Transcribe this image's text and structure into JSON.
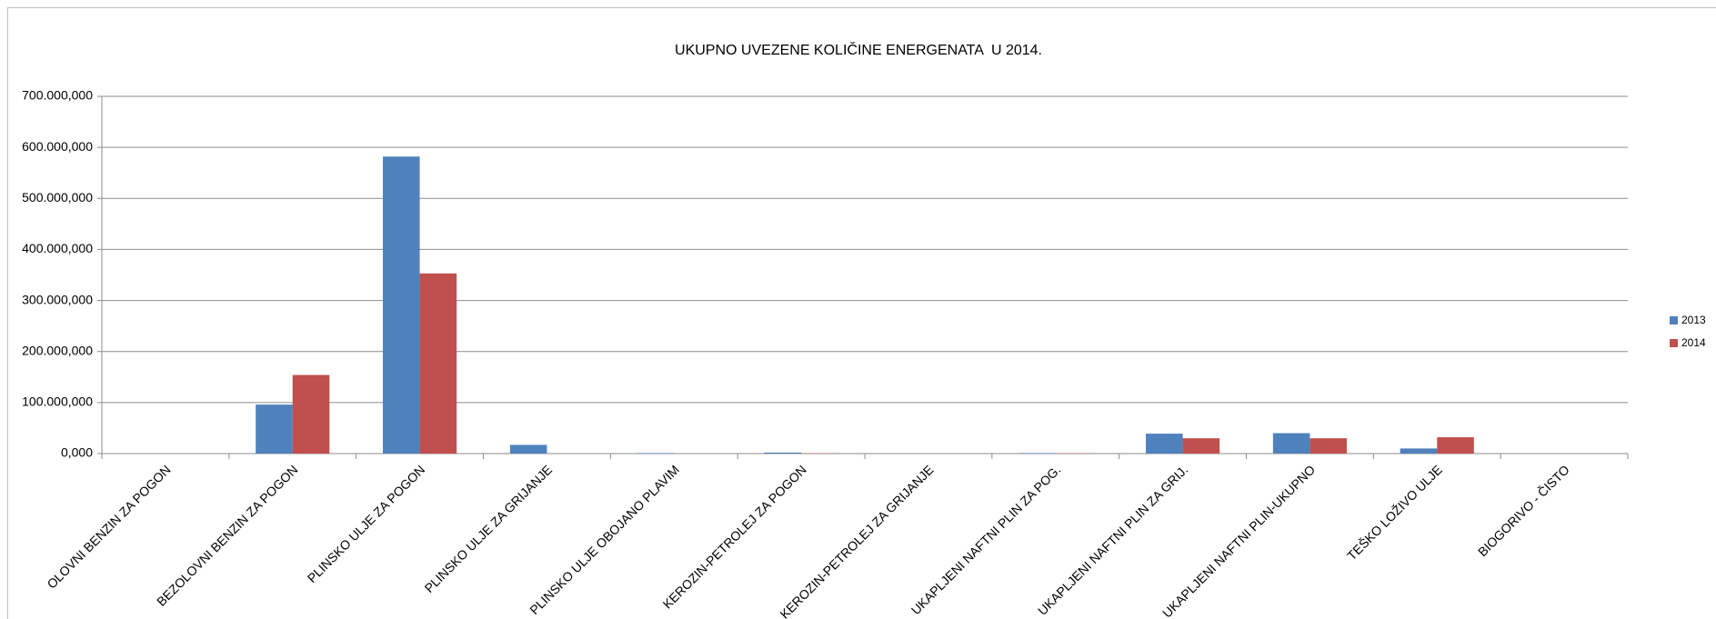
{
  "chart_data": {
    "type": "bar",
    "title": "UKUPNO UVEZENE KOLIČINE ENERGENATA  U 2014.",
    "categories": [
      "OLOVNI BENZIN ZA POGON",
      "BEZOLOVNI BENZIN ZA POGON",
      "PLINSKO ULJE ZA POGON",
      "PLINSKO ULJE ZA GRIJANJE",
      "PLINSKO ULJE OBOJANO PLAVIM",
      "KEROZIN-PETROLEJ ZA POGON",
      "KEROZIN-PETROLEJ ZA GRIJANJE",
      "UKAPLJENI NAFTNI PLIN ZA POG.",
      "UKAPLJENI NAFTNI PLIN ZA GRIJ.",
      "UKAPLJENI NAFTNI PLIN-UKUPNO",
      "TEŠKO LOŽIVO ULJE",
      "BIOGORIVO - ČISTO"
    ],
    "series": [
      {
        "name": "2013",
        "color": "#4f81bd",
        "values": [
          0,
          96000000,
          582000000,
          17000000,
          1000000,
          2000000,
          0,
          1000000,
          39000000,
          40000000,
          10000000,
          0
        ]
      },
      {
        "name": "2014",
        "color": "#c0504d",
        "values": [
          0,
          154000000,
          353000000,
          0,
          0,
          500000,
          0,
          500000,
          30000000,
          30000000,
          32000000,
          0
        ]
      }
    ],
    "ylim": [
      0,
      700000000
    ],
    "yticks": [
      {
        "value": 0,
        "label": "0,000"
      },
      {
        "value": 100000000,
        "label": "100.000,000"
      },
      {
        "value": 200000000,
        "label": "200.000,000"
      },
      {
        "value": 300000000,
        "label": "300.000,000"
      },
      {
        "value": 400000000,
        "label": "400.000,000"
      },
      {
        "value": 500000000,
        "label": "500.000,000"
      },
      {
        "value": 600000000,
        "label": "600.000,000"
      },
      {
        "value": 700000000,
        "label": "700.000,000"
      }
    ],
    "grid": true,
    "legend": "right"
  }
}
